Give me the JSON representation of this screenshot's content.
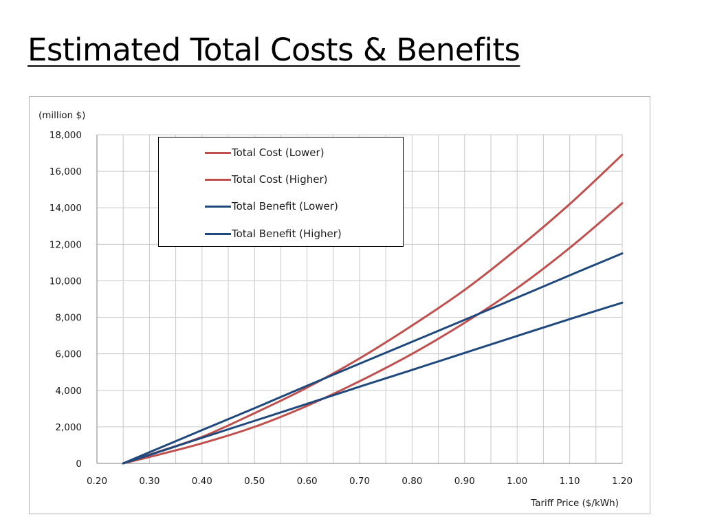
{
  "slide": {
    "title": "Estimated Total Costs & Benefits"
  },
  "chart_data": {
    "type": "line",
    "title": "",
    "xlabel": "Tariff Price ($/kWh)",
    "ylabel": "(million $)",
    "xlim": [
      0.2,
      1.2
    ],
    "ylim": [
      0,
      18000
    ],
    "xticks": [
      0.2,
      0.3,
      0.4,
      0.5,
      0.6,
      0.7,
      0.8,
      0.9,
      1.0,
      1.1,
      1.2
    ],
    "xtick_labels": [
      "0.20",
      "0.30",
      "0.40",
      "0.50",
      "0.60",
      "0.70",
      "0.80",
      "0.90",
      "1.00",
      "1.10",
      "1.20"
    ],
    "yticks": [
      0,
      2000,
      4000,
      6000,
      8000,
      10000,
      12000,
      14000,
      16000,
      18000
    ],
    "ytick_labels": [
      "0",
      "2,000",
      "4,000",
      "6,000",
      "8,000",
      "10,000",
      "12,000",
      "14,000",
      "16,000",
      "18,000"
    ],
    "grid": true,
    "legend_position": "top-left (inside plot)",
    "x": [
      0.25,
      0.3,
      0.4,
      0.5,
      0.6,
      0.7,
      0.8,
      0.9,
      1.0,
      1.1,
      1.2
    ],
    "series": [
      {
        "name": "Total Cost (Lower)",
        "color": "#c0504d",
        "values": [
          0,
          480,
          1450,
          2750,
          4150,
          5750,
          7550,
          9500,
          11750,
          14200,
          16900
        ]
      },
      {
        "name": "Total Cost (Higher)",
        "color": "#c0504d",
        "values": [
          0,
          350,
          1100,
          2000,
          3150,
          4500,
          6000,
          7700,
          9600,
          11800,
          14250
        ]
      },
      {
        "name": "Total Benefit (Lower)",
        "color": "#1f497d",
        "values": [
          0,
          610,
          1820,
          3020,
          4250,
          5460,
          6660,
          7860,
          9080,
          10300,
          11500
        ]
      },
      {
        "name": "Total Benefit (Higher)",
        "color": "#1f497d",
        "values": [
          0,
          460,
          1400,
          2330,
          3260,
          4200,
          5120,
          6050,
          6980,
          7900,
          8800
        ]
      }
    ]
  }
}
